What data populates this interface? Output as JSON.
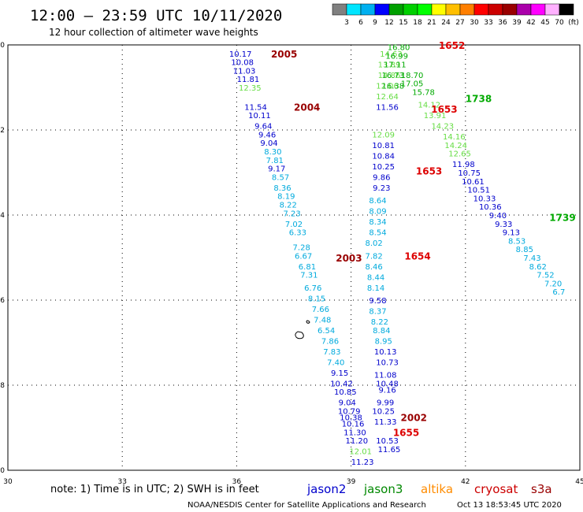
{
  "header": {
    "title": "12:00 – 23:59 UTC 10/11/2020",
    "subtitle": "12 hour collection of altimeter wave heights"
  },
  "legend": {
    "colors": [
      "#808080",
      "#00e5ff",
      "#00b0f0",
      "#0000ff",
      "#00a000",
      "#00d000",
      "#00ff00",
      "#ffff00",
      "#ffbf00",
      "#ff7f00",
      "#ff0000",
      "#cc0000",
      "#990000",
      "#aa00aa",
      "#ff00ff",
      "#ffb0ff",
      "#000000"
    ],
    "labels": [
      "3",
      "6",
      "9",
      "12",
      "15",
      "18",
      "21",
      "24",
      "27",
      "30",
      "33",
      "36",
      "39",
      "42",
      "45",
      "70",
      "(ft)"
    ]
  },
  "footer": {
    "note": "note: 1) Time is in UTC; 2) SWH is in feet",
    "credit": "NOAA/NESDIS Center for Satellite Applications and Research",
    "timestamp": "Oct 13 18:53:45 UTC 2020",
    "satellites": [
      {
        "name": "jason2",
        "color": "#0000cc"
      },
      {
        "name": "jason3",
        "color": "#008800"
      },
      {
        "name": "altika",
        "color": "#ff8c00"
      },
      {
        "name": "cryosat",
        "color": "#cc0000"
      },
      {
        "name": "s3a",
        "color": "#990000"
      }
    ]
  },
  "chart_data": {
    "type": "scatter",
    "title": "12:00 – 23:59 UTC 10/11/2020",
    "subtitle": "12 hour collection of altimeter wave heights",
    "xlim": [
      30,
      45
    ],
    "ylim": [
      -50,
      -40
    ],
    "x_ticks": [
      "30",
      "33",
      "36",
      "39",
      "42",
      "45"
    ],
    "y_ticks": [
      "-40",
      "-42",
      "-44",
      "-46",
      "-48",
      "-50"
    ],
    "grid": true,
    "colors": {
      "blue": "#0000cc",
      "cyan": "#00aadd",
      "lightgreen": "#66dd44",
      "green": "#00aa00",
      "darkred": "#990000",
      "red": "#dd0000"
    },
    "time_labels": [
      {
        "text": "2005",
        "lon": 36.9,
        "lat": -40.2,
        "color": "darkred"
      },
      {
        "text": "2004",
        "lon": 37.5,
        "lat": -41.45,
        "color": "darkred"
      },
      {
        "text": "2003",
        "lon": 38.6,
        "lat": -45.0,
        "color": "darkred"
      },
      {
        "text": "2002",
        "lon": 40.3,
        "lat": -48.75,
        "color": "darkred"
      },
      {
        "text": "1655",
        "lon": 40.1,
        "lat": -49.1,
        "color": "red"
      },
      {
        "text": "1654",
        "lon": 40.4,
        "lat": -44.95,
        "color": "red"
      },
      {
        "text": "1653",
        "lon": 40.7,
        "lat": -42.95,
        "color": "red"
      },
      {
        "text": "1653",
        "lon": 41.1,
        "lat": -41.5,
        "color": "red"
      },
      {
        "text": "1652",
        "lon": 41.3,
        "lat": -40.0,
        "color": "red"
      },
      {
        "text": "1738",
        "lon": 42.0,
        "lat": -41.25,
        "color": "green"
      },
      {
        "text": "1739",
        "lon": 44.2,
        "lat": -44.05,
        "color": "green"
      }
    ],
    "series": [
      {
        "name": "s3a track 2003-2005",
        "points": [
          {
            "lon": 36.1,
            "lat": -40.2,
            "v": "10.17",
            "c": "blue"
          },
          {
            "lon": 36.15,
            "lat": -40.4,
            "v": "10.08",
            "c": "blue"
          },
          {
            "lon": 36.2,
            "lat": -40.6,
            "v": "11.03",
            "c": "blue"
          },
          {
            "lon": 36.3,
            "lat": -40.8,
            "v": "11.81",
            "c": "blue"
          },
          {
            "lon": 36.35,
            "lat": -41.0,
            "v": "12.35",
            "c": "lightgreen"
          },
          {
            "lon": 36.5,
            "lat": -41.45,
            "v": "11.54",
            "c": "blue"
          },
          {
            "lon": 36.6,
            "lat": -41.65,
            "v": "10.11",
            "c": "blue"
          },
          {
            "lon": 36.7,
            "lat": -41.9,
            "v": "9.64",
            "c": "blue"
          },
          {
            "lon": 36.8,
            "lat": -42.1,
            "v": "9.46",
            "c": "blue"
          },
          {
            "lon": 36.85,
            "lat": -42.3,
            "v": "9.04",
            "c": "blue"
          },
          {
            "lon": 36.95,
            "lat": -42.5,
            "v": "8.30",
            "c": "cyan"
          },
          {
            "lon": 37.0,
            "lat": -42.7,
            "v": "7.81",
            "c": "cyan"
          },
          {
            "lon": 37.05,
            "lat": -42.9,
            "v": "9.17",
            "c": "blue"
          },
          {
            "lon": 37.15,
            "lat": -43.1,
            "v": "8.57",
            "c": "cyan"
          },
          {
            "lon": 37.2,
            "lat": -43.35,
            "v": "8.36",
            "c": "cyan"
          },
          {
            "lon": 37.3,
            "lat": -43.55,
            "v": "8.19",
            "c": "cyan"
          },
          {
            "lon": 37.35,
            "lat": -43.75,
            "v": "8.22",
            "c": "cyan"
          },
          {
            "lon": 37.45,
            "lat": -43.95,
            "v": "7.23",
            "c": "cyan"
          },
          {
            "lon": 37.5,
            "lat": -44.2,
            "v": "7.02",
            "c": "cyan"
          },
          {
            "lon": 37.6,
            "lat": -44.4,
            "v": "6.33",
            "c": "cyan"
          },
          {
            "lon": 37.7,
            "lat": -44.75,
            "v": "7.28",
            "c": "cyan"
          },
          {
            "lon": 37.75,
            "lat": -44.95,
            "v": "6.67",
            "c": "cyan"
          },
          {
            "lon": 37.85,
            "lat": -45.2,
            "v": "6.81",
            "c": "cyan"
          },
          {
            "lon": 37.9,
            "lat": -45.4,
            "v": "7.31",
            "c": "cyan"
          },
          {
            "lon": 38.0,
            "lat": -45.7,
            "v": "6.76",
            "c": "cyan"
          },
          {
            "lon": 38.1,
            "lat": -45.95,
            "v": "8.15",
            "c": "cyan"
          },
          {
            "lon": 38.2,
            "lat": -46.2,
            "v": "7.66",
            "c": "cyan"
          },
          {
            "lon": 38.25,
            "lat": -46.45,
            "v": "7.48",
            "c": "cyan"
          },
          {
            "lon": 38.35,
            "lat": -46.7,
            "v": "6.54",
            "c": "cyan"
          },
          {
            "lon": 38.45,
            "lat": -46.95,
            "v": "7.86",
            "c": "cyan"
          },
          {
            "lon": 38.5,
            "lat": -47.2,
            "v": "7.83",
            "c": "cyan"
          },
          {
            "lon": 38.6,
            "lat": -47.45,
            "v": "7.40",
            "c": "cyan"
          },
          {
            "lon": 38.7,
            "lat": -47.7,
            "v": "9.15",
            "c": "blue"
          },
          {
            "lon": 38.75,
            "lat": -47.95,
            "v": "10.42",
            "c": "blue"
          },
          {
            "lon": 38.85,
            "lat": -48.15,
            "v": "10.85",
            "c": "blue"
          },
          {
            "lon": 38.9,
            "lat": -48.4,
            "v": "9.04",
            "c": "blue"
          },
          {
            "lon": 38.95,
            "lat": -48.6,
            "v": "10.79",
            "c": "blue"
          },
          {
            "lon": 39.0,
            "lat": -48.75,
            "v": "10.38",
            "c": "blue"
          },
          {
            "lon": 39.05,
            "lat": -48.9,
            "v": "10.16",
            "c": "blue"
          },
          {
            "lon": 39.1,
            "lat": -49.1,
            "v": "11.30",
            "c": "blue"
          },
          {
            "lon": 39.15,
            "lat": -49.3,
            "v": "11.20",
            "c": "blue"
          },
          {
            "lon": 39.25,
            "lat": -49.55,
            "v": "12.01",
            "c": "lightgreen"
          },
          {
            "lon": 39.3,
            "lat": -49.8,
            "v": "11.23",
            "c": "blue"
          }
        ]
      },
      {
        "name": "cryosat track 1652-1655",
        "points": [
          {
            "lon": 39.9,
            "lat": -47.75,
            "v": "11.08",
            "c": "blue"
          },
          {
            "lon": 39.95,
            "lat": -47.95,
            "v": "10.48",
            "c": "blue"
          },
          {
            "lon": 39.95,
            "lat": -48.1,
            "v": "9.16",
            "c": "blue"
          },
          {
            "lon": 39.9,
            "lat": -48.4,
            "v": "9.99",
            "c": "blue"
          },
          {
            "lon": 39.85,
            "lat": -48.6,
            "v": "10.25",
            "c": "blue"
          },
          {
            "lon": 39.9,
            "lat": -48.85,
            "v": "11.33",
            "c": "blue"
          },
          {
            "lon": 39.95,
            "lat": -49.3,
            "v": "10.53",
            "c": "blue"
          },
          {
            "lon": 40.0,
            "lat": -49.5,
            "v": "11.65",
            "c": "blue"
          },
          {
            "lon": 39.95,
            "lat": -47.45,
            "v": "10.73",
            "c": "blue"
          },
          {
            "lon": 39.9,
            "lat": -47.2,
            "v": "10.13",
            "c": "blue"
          },
          {
            "lon": 39.85,
            "lat": -46.95,
            "v": "8.95",
            "c": "cyan"
          },
          {
            "lon": 39.8,
            "lat": -46.7,
            "v": "8.84",
            "c": "cyan"
          },
          {
            "lon": 39.75,
            "lat": -46.5,
            "v": "8.22",
            "c": "cyan"
          },
          {
            "lon": 39.7,
            "lat": -46.25,
            "v": "8.37",
            "c": "cyan"
          },
          {
            "lon": 39.7,
            "lat": -46.0,
            "v": "9.58",
            "c": "blue"
          },
          {
            "lon": 39.65,
            "lat": -45.7,
            "v": "8.14",
            "c": "cyan"
          },
          {
            "lon": 39.65,
            "lat": -45.45,
            "v": "8.44",
            "c": "cyan"
          },
          {
            "lon": 39.6,
            "lat": -45.2,
            "v": "8.46",
            "c": "cyan"
          },
          {
            "lon": 39.6,
            "lat": -44.95,
            "v": "7.82",
            "c": "cyan"
          },
          {
            "lon": 39.6,
            "lat": -44.65,
            "v": "8.02",
            "c": "cyan"
          },
          {
            "lon": 39.7,
            "lat": -44.4,
            "v": "8.54",
            "c": "cyan"
          },
          {
            "lon": 39.7,
            "lat": -44.15,
            "v": "8.34",
            "c": "cyan"
          },
          {
            "lon": 39.7,
            "lat": -43.9,
            "v": "8.09",
            "c": "cyan"
          },
          {
            "lon": 39.7,
            "lat": -43.65,
            "v": "8.64",
            "c": "cyan"
          },
          {
            "lon": 39.8,
            "lat": -43.35,
            "v": "9.23",
            "c": "blue"
          },
          {
            "lon": 39.8,
            "lat": -43.1,
            "v": "9.86",
            "c": "blue"
          },
          {
            "lon": 39.85,
            "lat": -42.85,
            "v": "10.25",
            "c": "blue"
          },
          {
            "lon": 39.85,
            "lat": -42.6,
            "v": "10.84",
            "c": "blue"
          },
          {
            "lon": 39.85,
            "lat": -42.35,
            "v": "10.81",
            "c": "blue"
          },
          {
            "lon": 39.85,
            "lat": -42.1,
            "v": "12.09",
            "c": "lightgreen"
          },
          {
            "lon": 39.95,
            "lat": -41.45,
            "v": "11.56",
            "c": "blue"
          },
          {
            "lon": 39.95,
            "lat": -41.2,
            "v": "12.64",
            "c": "lightgreen"
          },
          {
            "lon": 39.95,
            "lat": -40.95,
            "v": "12.06",
            "c": "lightgreen"
          },
          {
            "lon": 40.0,
            "lat": -40.7,
            "v": "14.86",
            "c": "lightgreen"
          },
          {
            "lon": 40.0,
            "lat": -40.45,
            "v": "13.89",
            "c": "lightgreen"
          },
          {
            "lon": 40.05,
            "lat": -40.2,
            "v": "14.63",
            "c": "lightgreen"
          },
          {
            "lon": 40.1,
            "lat": -40.95,
            "v": "16.38",
            "c": "green"
          },
          {
            "lon": 40.1,
            "lat": -40.7,
            "v": "16.73",
            "c": "green"
          },
          {
            "lon": 40.15,
            "lat": -40.45,
            "v": "17.11",
            "c": "green"
          },
          {
            "lon": 40.2,
            "lat": -40.25,
            "v": "16.99",
            "c": "green"
          },
          {
            "lon": 40.25,
            "lat": -40.05,
            "v": "16.80",
            "c": "green"
          }
        ]
      },
      {
        "name": "jason3 track 1738-1739",
        "points": [
          {
            "lon": 40.6,
            "lat": -40.7,
            "v": "18.70",
            "c": "green"
          },
          {
            "lon": 40.6,
            "lat": -40.9,
            "v": "17.05",
            "c": "green"
          },
          {
            "lon": 40.9,
            "lat": -41.1,
            "v": "15.78",
            "c": "green"
          },
          {
            "lon": 41.05,
            "lat": -41.4,
            "v": "14.12",
            "c": "lightgreen"
          },
          {
            "lon": 41.2,
            "lat": -41.65,
            "v": "13.91",
            "c": "lightgreen"
          },
          {
            "lon": 41.4,
            "lat": -41.9,
            "v": "14.23",
            "c": "lightgreen"
          },
          {
            "lon": 41.7,
            "lat": -42.15,
            "v": "14.16",
            "c": "lightgreen"
          },
          {
            "lon": 41.75,
            "lat": -42.35,
            "v": "14.24",
            "c": "lightgreen"
          },
          {
            "lon": 41.85,
            "lat": -42.55,
            "v": "12.65",
            "c": "lightgreen"
          },
          {
            "lon": 41.95,
            "lat": -42.8,
            "v": "11.98",
            "c": "blue"
          },
          {
            "lon": 42.1,
            "lat": -43.0,
            "v": "10.75",
            "c": "blue"
          },
          {
            "lon": 42.2,
            "lat": -43.2,
            "v": "10.61",
            "c": "blue"
          },
          {
            "lon": 42.35,
            "lat": -43.4,
            "v": "10.51",
            "c": "blue"
          },
          {
            "lon": 42.5,
            "lat": -43.6,
            "v": "10.33",
            "c": "blue"
          },
          {
            "lon": 42.65,
            "lat": -43.8,
            "v": "10.36",
            "c": "blue"
          },
          {
            "lon": 42.85,
            "lat": -44.0,
            "v": "9.40",
            "c": "blue"
          },
          {
            "lon": 43.0,
            "lat": -44.2,
            "v": "9.33",
            "c": "blue"
          },
          {
            "lon": 43.2,
            "lat": -44.4,
            "v": "9.13",
            "c": "blue"
          },
          {
            "lon": 43.35,
            "lat": -44.6,
            "v": "8.53",
            "c": "cyan"
          },
          {
            "lon": 43.55,
            "lat": -44.8,
            "v": "8.85",
            "c": "cyan"
          },
          {
            "lon": 43.75,
            "lat": -45.0,
            "v": "7.43",
            "c": "cyan"
          },
          {
            "lon": 43.9,
            "lat": -45.2,
            "v": "8.62",
            "c": "cyan"
          },
          {
            "lon": 44.1,
            "lat": -45.4,
            "v": "7.52",
            "c": "cyan"
          },
          {
            "lon": 44.3,
            "lat": -45.6,
            "v": "7.20",
            "c": "cyan"
          },
          {
            "lon": 44.45,
            "lat": -45.8,
            "v": "6.7",
            "c": "cyan"
          }
        ]
      }
    ]
  }
}
